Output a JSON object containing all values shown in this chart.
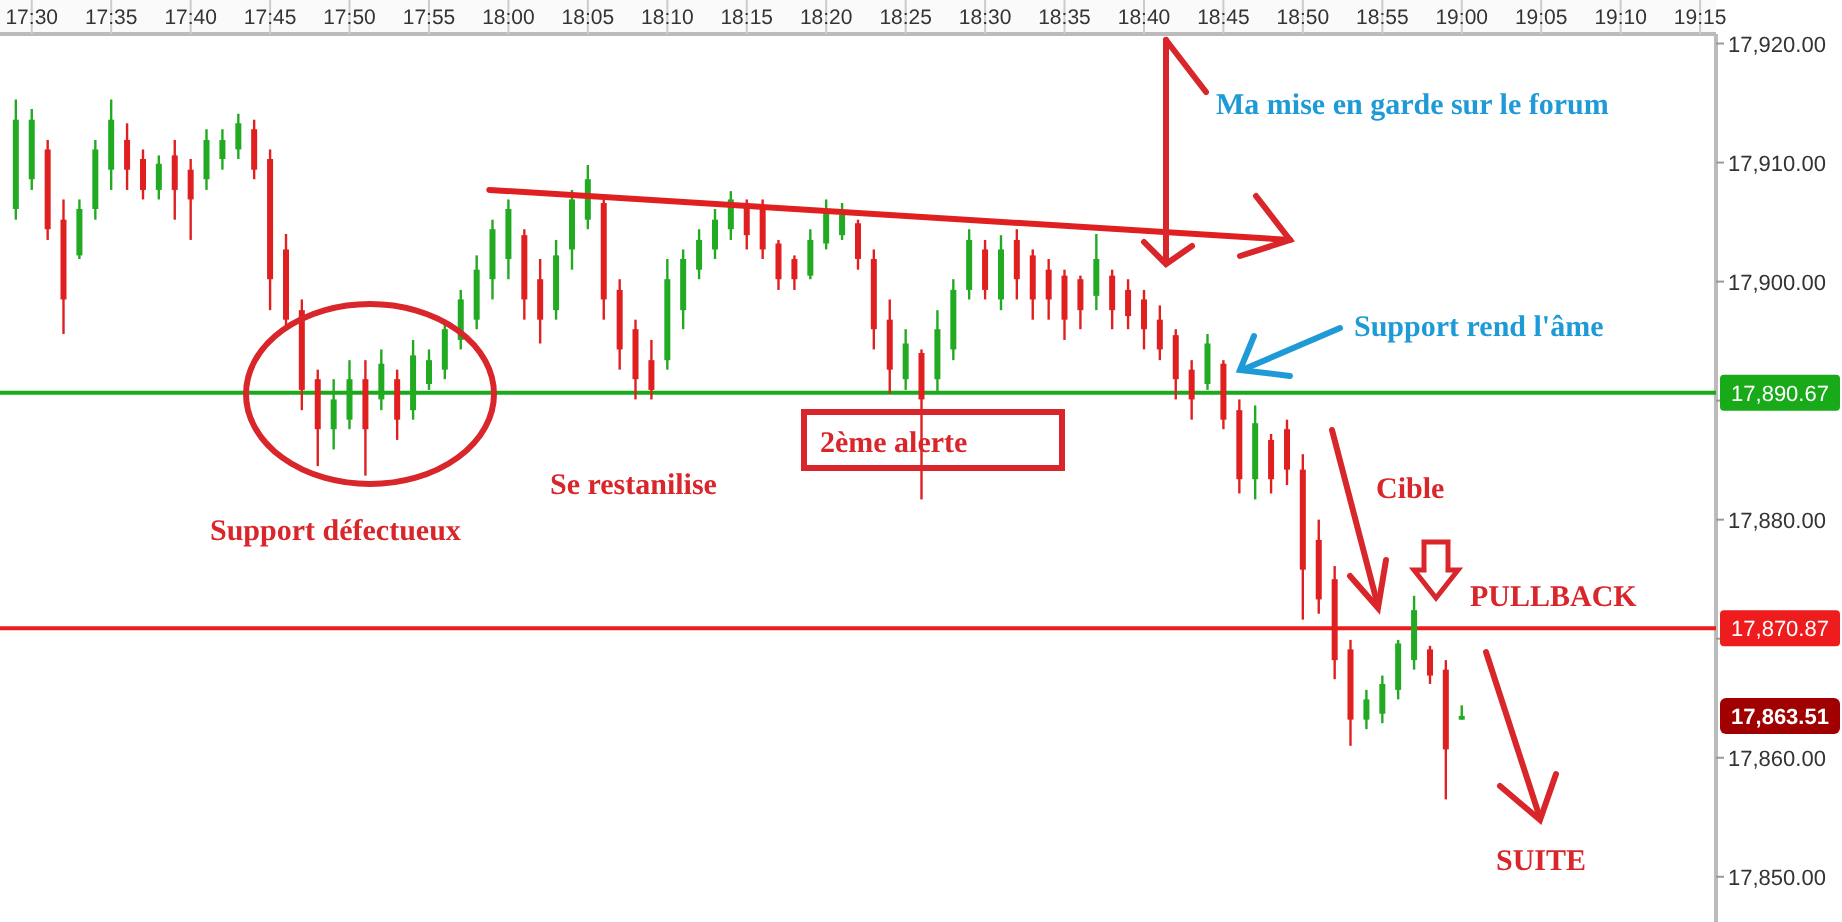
{
  "chart_data": {
    "type": "candlestick",
    "x": [
      17.4833,
      17.5,
      17.5167,
      17.5333,
      17.55,
      17.5667,
      17.5833,
      17.6,
      17.6167,
      17.6333,
      17.65,
      17.6667,
      17.6833,
      17.7,
      17.7167,
      17.7333,
      17.75,
      17.7667,
      17.7833,
      17.8,
      17.8167,
      17.8333,
      17.85,
      17.8667,
      17.8833,
      17.9,
      17.9167,
      17.9333,
      17.95,
      17.9667,
      17.9833,
      18,
      18.0167,
      18.0333,
      18.05,
      18.0667,
      18.0833,
      18.1,
      18.1167,
      18.1333,
      18.15,
      18.1667,
      18.1833,
      18.2,
      18.2167,
      18.2333,
      18.25,
      18.2667,
      18.2833,
      18.3,
      18.3167,
      18.3333,
      18.35,
      18.3667,
      18.3833,
      18.4,
      18.4167,
      18.4333,
      18.45,
      18.4667,
      18.4833,
      18.5,
      18.5167,
      18.5333,
      18.55,
      18.5667,
      18.5833,
      18.6,
      18.6167,
      18.6333,
      18.65,
      18.6667,
      18.6833,
      18.7,
      18.7167,
      18.7333,
      18.75,
      18.7667,
      18.7833,
      18.8,
      18.8167,
      18.8333,
      18.85,
      18.8667,
      18.8833,
      18.9,
      18.9167,
      18.9333,
      18.95,
      18.9667,
      18.9833,
      19
    ],
    "ohlc": [
      [
        17906.1,
        17915.3,
        17905.2,
        17913.6
      ],
      [
        17908.6,
        17914.5,
        17907.7,
        17913.6
      ],
      [
        17911.1,
        17911.9,
        17903.5,
        17904.4
      ],
      [
        17905.2,
        17906.9,
        17895.6,
        17898.5
      ],
      [
        17902.2,
        17906.9,
        17901.9,
        17906.1
      ],
      [
        17906.1,
        17911.9,
        17905.2,
        17911.1
      ],
      [
        17909.4,
        17915.3,
        17907.7,
        17913.6
      ],
      [
        17911.9,
        17913.3,
        17907.7,
        17909.4
      ],
      [
        17910.3,
        17911.1,
        17906.9,
        17907.7
      ],
      [
        17907.7,
        17910.6,
        17906.9,
        17909.9
      ],
      [
        17910.6,
        17911.9,
        17905.2,
        17907.7
      ],
      [
        17909.4,
        17910.3,
        17903.5,
        17906.9
      ],
      [
        17908.6,
        17912.8,
        17907.7,
        17911.9
      ],
      [
        17910.3,
        17912.8,
        17909.4,
        17911.9
      ],
      [
        17911.1,
        17914.1,
        17910.3,
        17913.3
      ],
      [
        17912.8,
        17913.6,
        17908.6,
        17909.4
      ],
      [
        17910.3,
        17911.1,
        17897.6,
        17900.2
      ],
      [
        17902.7,
        17904.0,
        17896.0,
        17896.8
      ],
      [
        17897.6,
        17898.5,
        17889.2,
        17890.9
      ],
      [
        17891.8,
        17892.6,
        17884.5,
        17887.6
      ],
      [
        17887.6,
        17891.8,
        17885.9,
        17890.1
      ],
      [
        17888.4,
        17893.4,
        17887.6,
        17891.8
      ],
      [
        17891.8,
        17893.4,
        17883.7,
        17887.6
      ],
      [
        17890.1,
        17894.3,
        17889.2,
        17893.1
      ],
      [
        17891.8,
        17892.6,
        17886.7,
        17888.4
      ],
      [
        17889.2,
        17895.1,
        17888.4,
        17893.8
      ],
      [
        17891.4,
        17894.3,
        17890.9,
        17893.4
      ],
      [
        17892.6,
        17896.8,
        17891.8,
        17896.0
      ],
      [
        17895.1,
        17899.3,
        17894.3,
        17898.5
      ],
      [
        17896.8,
        17902.2,
        17896.0,
        17901.0
      ],
      [
        17900.2,
        17905.2,
        17898.5,
        17904.4
      ],
      [
        17901.9,
        17906.9,
        17900.2,
        17906.1
      ],
      [
        17903.9,
        17904.4,
        17896.8,
        17898.5
      ],
      [
        17900.2,
        17901.9,
        17894.8,
        17896.8
      ],
      [
        17897.6,
        17903.5,
        17896.8,
        17902.2
      ],
      [
        17902.7,
        17907.7,
        17901.0,
        17906.9
      ],
      [
        17905.2,
        17909.8,
        17904.4,
        17908.6
      ],
      [
        17906.6,
        17906.9,
        17896.8,
        17898.5
      ],
      [
        17899.3,
        17900.2,
        17892.6,
        17894.3
      ],
      [
        17896.0,
        17896.8,
        17890.1,
        17891.8
      ],
      [
        17893.4,
        17895.1,
        17890.1,
        17890.9
      ],
      [
        17893.4,
        17901.9,
        17892.6,
        17900.2
      ],
      [
        17897.6,
        17902.7,
        17896.0,
        17901.9
      ],
      [
        17901.0,
        17904.4,
        17900.2,
        17903.5
      ],
      [
        17902.7,
        17906.1,
        17901.9,
        17905.2
      ],
      [
        17904.4,
        17907.6,
        17903.5,
        17906.9
      ],
      [
        17906.4,
        17906.9,
        17902.7,
        17903.9
      ],
      [
        17906.1,
        17906.9,
        17901.9,
        17902.7
      ],
      [
        17903.2,
        17903.5,
        17899.3,
        17900.2
      ],
      [
        17901.9,
        17902.2,
        17899.3,
        17900.2
      ],
      [
        17900.5,
        17904.4,
        17900.2,
        17903.5
      ],
      [
        17903.2,
        17906.9,
        17902.7,
        17906.1
      ],
      [
        17903.9,
        17906.6,
        17903.5,
        17905.6
      ],
      [
        17904.9,
        17905.2,
        17901.0,
        17901.9
      ],
      [
        17901.9,
        17902.7,
        17894.3,
        17896.0
      ],
      [
        17896.8,
        17898.5,
        17890.6,
        17892.6
      ],
      [
        17891.8,
        17896.0,
        17890.9,
        17894.8
      ],
      [
        17894.0,
        17894.3,
        17881.7,
        17890.1
      ],
      [
        17891.8,
        17897.6,
        17890.6,
        17896.0
      ],
      [
        17894.3,
        17900.2,
        17893.4,
        17899.3
      ],
      [
        17899.3,
        17904.4,
        17898.5,
        17903.5
      ],
      [
        17902.7,
        17903.5,
        17898.5,
        17899.3
      ],
      [
        17898.5,
        17903.9,
        17897.6,
        17902.7
      ],
      [
        17903.5,
        17904.4,
        17898.5,
        17900.2
      ],
      [
        17902.2,
        17902.7,
        17896.8,
        17898.5
      ],
      [
        17901.0,
        17901.9,
        17896.8,
        17898.5
      ],
      [
        17900.5,
        17901.0,
        17895.1,
        17896.8
      ],
      [
        17900.2,
        17900.5,
        17896.0,
        17897.6
      ],
      [
        17898.8,
        17904.0,
        17897.6,
        17901.9
      ],
      [
        17900.5,
        17901.0,
        17896.0,
        17897.6
      ],
      [
        17899.3,
        17900.2,
        17896.0,
        17897.1
      ],
      [
        17898.5,
        17899.3,
        17894.3,
        17896.0
      ],
      [
        17896.8,
        17898.0,
        17893.4,
        17894.3
      ],
      [
        17895.5,
        17896.0,
        17890.1,
        17891.8
      ],
      [
        17892.6,
        17893.4,
        17888.4,
        17890.1
      ],
      [
        17891.4,
        17895.6,
        17890.9,
        17894.8
      ],
      [
        17893.1,
        17893.4,
        17887.6,
        17888.4
      ],
      [
        17889.2,
        17890.1,
        17882.2,
        17883.4
      ],
      [
        17883.4,
        17889.6,
        17881.7,
        17888.1
      ],
      [
        17886.7,
        17887.2,
        17882.2,
        17883.4
      ],
      [
        17887.6,
        17888.4,
        17882.9,
        17884.2
      ],
      [
        17884.2,
        17885.5,
        17871.6,
        17875.8
      ],
      [
        17878.3,
        17880.0,
        17872.1,
        17873.3
      ],
      [
        17875.0,
        17876.1,
        17866.6,
        17868.2
      ],
      [
        17869.1,
        17869.9,
        17861.0,
        17863.2
      ],
      [
        17863.2,
        17865.7,
        17862.4,
        17864.9
      ],
      [
        17863.7,
        17866.9,
        17862.9,
        17866.2
      ],
      [
        17865.7,
        17869.9,
        17864.9,
        17869.6
      ],
      [
        17868.2,
        17873.6,
        17867.4,
        17872.4
      ],
      [
        17869.1,
        17869.4,
        17866.2,
        17866.9
      ],
      [
        17867.4,
        17868.2,
        17856.5,
        17860.7
      ],
      [
        17863.2,
        17864.4,
        17863.2,
        17863.51
      ]
    ],
    "colors": [
      "#22aa22",
      "#22aa22",
      "#e02020",
      "#e02020",
      "#22aa22",
      "#22aa22",
      "#22aa22",
      "#e02020",
      "#e02020",
      "#22aa22",
      "#e02020",
      "#e02020",
      "#22aa22",
      "#22aa22",
      "#22aa22",
      "#e02020",
      "#e02020",
      "#e02020",
      "#e02020",
      "#e02020",
      "#22aa22",
      "#22aa22",
      "#e02020",
      "#22aa22",
      "#e02020",
      "#22aa22",
      "#22aa22",
      "#22aa22",
      "#22aa22",
      "#22aa22",
      "#22aa22",
      "#22aa22",
      "#e02020",
      "#e02020",
      "#22aa22",
      "#22aa22",
      "#22aa22",
      "#e02020",
      "#e02020",
      "#e02020",
      "#e02020",
      "#22aa22",
      "#22aa22",
      "#22aa22",
      "#22aa22",
      "#22aa22",
      "#e02020",
      "#e02020",
      "#e02020",
      "#e02020",
      "#22aa22",
      "#22aa22",
      "#22aa22",
      "#e02020",
      "#e02020",
      "#e02020",
      "#22aa22",
      "#e02020",
      "#22aa22",
      "#22aa22",
      "#22aa22",
      "#e02020",
      "#22aa22",
      "#e02020",
      "#e02020",
      "#e02020",
      "#e02020",
      "#e02020",
      "#22aa22",
      "#e02020",
      "#e02020",
      "#e02020",
      "#e02020",
      "#e02020",
      "#e02020",
      "#22aa22",
      "#e02020",
      "#e02020",
      "#22aa22",
      "#e02020",
      "#e02020",
      "#e02020",
      "#e02020",
      "#e02020",
      "#e02020",
      "#22aa22",
      "#22aa22",
      "#22aa22",
      "#22aa22",
      "#e02020",
      "#e02020",
      "#22aa22"
    ],
    "series": [
      {
        "type": "line",
        "x": [
          17.98,
          18.82
        ],
        "values": [
          17907.7,
          17903.5
        ],
        "color": "#e02020"
      }
    ],
    "xlim": [
      17.4667,
      19.2667
    ],
    "xticks": [
      {
        "value": 17.5,
        "label": "17:30"
      },
      {
        "value": 17.5833,
        "label": "17:35"
      },
      {
        "value": 17.6667,
        "label": "17:40"
      },
      {
        "value": 17.75,
        "label": "17:45"
      },
      {
        "value": 17.8333,
        "label": "17:50"
      },
      {
        "value": 17.9167,
        "label": "17:55"
      },
      {
        "value": 18,
        "label": "18:00"
      },
      {
        "value": 18.0833,
        "label": "18:05"
      },
      {
        "value": 18.1667,
        "label": "18:10"
      },
      {
        "value": 18.25,
        "label": "18:15"
      },
      {
        "value": 18.3333,
        "label": "18:20"
      },
      {
        "value": 18.4167,
        "label": "18:25"
      },
      {
        "value": 18.5,
        "label": "18:30"
      },
      {
        "value": 18.5833,
        "label": "18:35"
      },
      {
        "value": 18.6667,
        "label": "18:40"
      },
      {
        "value": 18.75,
        "label": "18:45"
      },
      {
        "value": 18.8333,
        "label": "18:50"
      },
      {
        "value": 18.9167,
        "label": "18:55"
      },
      {
        "value": 19,
        "label": "19:00"
      },
      {
        "value": 19.0833,
        "label": "19:05"
      },
      {
        "value": 19.1667,
        "label": "19:10"
      },
      {
        "value": 19.25,
        "label": "19:15"
      }
    ],
    "ylim": [
      17846.2,
      17920.8
    ],
    "yticks": [
      {
        "value": 17850,
        "label": "17,850.00"
      },
      {
        "value": 17860,
        "label": "17,860.00"
      },
      {
        "value": 17870,
        "label": null
      },
      {
        "value": 17880,
        "label": "17,880.00"
      },
      {
        "value": 17890,
        "label": null
      },
      {
        "value": 17900,
        "label": "17,900.00"
      },
      {
        "value": 17910,
        "label": "17,910.00"
      },
      {
        "value": 17920,
        "label": "17,920.00"
      }
    ],
    "ref_lines": [
      {
        "axis": "y",
        "value": 17890.67,
        "label": "17,890.67",
        "color": "#18aa18"
      },
      {
        "axis": "y",
        "value": 17870.87,
        "label": "17,870.87",
        "color": "#ee1c1c"
      }
    ],
    "annotations": [
      "Ma mise en garde sur le forum",
      "Support rend l'âme",
      "Se restanilise",
      "2ème alerte",
      "Support défectueux",
      "Cible",
      "PULLBACK",
      "SUITE",
      "17,863.51"
    ]
  }
}
